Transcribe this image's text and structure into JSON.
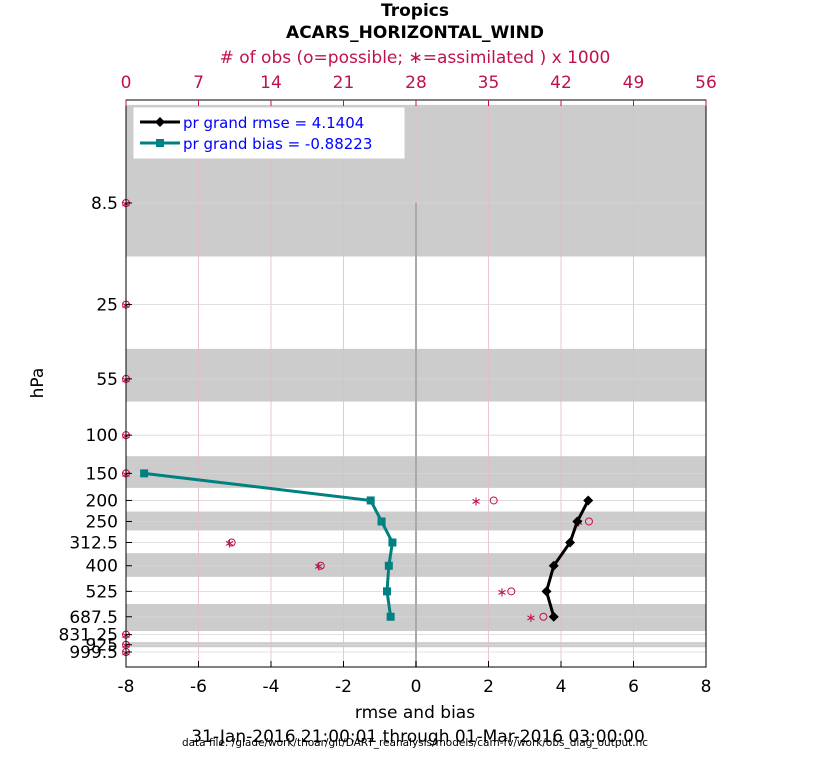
{
  "title_line1": "Tropics",
  "title_line2": "ACARS_HORIZONTAL_WIND",
  "top_axis_label": "# of obs (o=possible; ∗=assimilated ) x 1000",
  "xlabel": "rmse and bias",
  "ylabel": "hPa",
  "date_range": "31-Jan-2016 21:00:01 through 01-Mar-2016 03:00:00",
  "data_file": "data file: /glade/work/thoar/git/DART_reanalysis/models/cam-fv/work/obs_diag_output.nc",
  "colors": {
    "rmse": "#000000",
    "bias": "#008080",
    "obs": "#c0104f",
    "legend_text": "#0000ff",
    "band": "#cccccc",
    "top_axis": "#c0104f"
  },
  "chart_data": {
    "type": "line",
    "xlim": [
      -8,
      8
    ],
    "x_ticks": [
      "-8",
      "-6",
      "-4",
      "-2",
      "0",
      "2",
      "4",
      "6",
      "8"
    ],
    "top_xlim": [
      0,
      56
    ],
    "top_ticks": [
      "0",
      "7",
      "14",
      "21",
      "28",
      "35",
      "42",
      "49",
      "56"
    ],
    "y_scale": "log",
    "y_reversed": true,
    "y_ticks": [
      "8.5",
      "25",
      "55",
      "100",
      "150",
      "200",
      "250",
      "312.5",
      "400",
      "525",
      "687.5",
      "831.25",
      "925",
      "999.5"
    ],
    "y_tick_values": [
      8.5,
      25,
      55,
      100,
      150,
      200,
      250,
      312.5,
      400,
      525,
      687.5,
      831.25,
      925,
      999.5
    ],
    "gray_bands": [
      [
        3,
        15
      ],
      [
        40,
        70
      ],
      [
        125,
        175
      ],
      [
        225,
        275
      ],
      [
        350,
        450
      ],
      [
        600,
        800
      ],
      [
        900,
        950
      ]
    ],
    "grid": true,
    "legend_position": "top-left",
    "series": [
      {
        "name": "pr grand rmse = 4.1404",
        "key": "rmse",
        "points": [
          [
            4.75,
            200
          ],
          [
            4.45,
            250
          ],
          [
            4.25,
            312.5
          ],
          [
            3.8,
            400
          ],
          [
            3.6,
            525
          ],
          [
            3.8,
            687.5
          ]
        ]
      },
      {
        "name": "pr grand bias = -0.88223",
        "key": "bias",
        "points": [
          [
            -7.5,
            150
          ],
          [
            -1.25,
            200
          ],
          [
            -0.95,
            250
          ],
          [
            -0.65,
            312.5
          ],
          [
            -0.75,
            400
          ],
          [
            -0.8,
            525
          ],
          [
            -0.7,
            687.5
          ]
        ]
      }
    ],
    "obs_possible": [
      [
        0,
        8.5
      ],
      [
        0,
        25
      ],
      [
        0,
        55
      ],
      [
        0,
        100
      ],
      [
        0,
        150
      ],
      [
        35.5,
        200
      ],
      [
        44.7,
        250
      ],
      [
        10.2,
        312.5
      ],
      [
        18.8,
        400
      ],
      [
        37.2,
        525
      ],
      [
        40.3,
        687.5
      ],
      [
        0,
        831.25
      ],
      [
        0,
        925
      ],
      [
        0,
        999.5
      ]
    ],
    "obs_assimilated": [
      [
        0,
        8.5
      ],
      [
        0,
        25
      ],
      [
        0,
        55
      ],
      [
        0,
        100
      ],
      [
        0,
        150
      ],
      [
        33.8,
        200
      ],
      [
        43.7,
        250
      ],
      [
        10.0,
        312.5
      ],
      [
        18.6,
        400
      ],
      [
        36.3,
        525
      ],
      [
        39.1,
        687.5
      ],
      [
        0,
        831.25
      ],
      [
        0,
        925
      ],
      [
        0,
        999.5
      ]
    ]
  }
}
